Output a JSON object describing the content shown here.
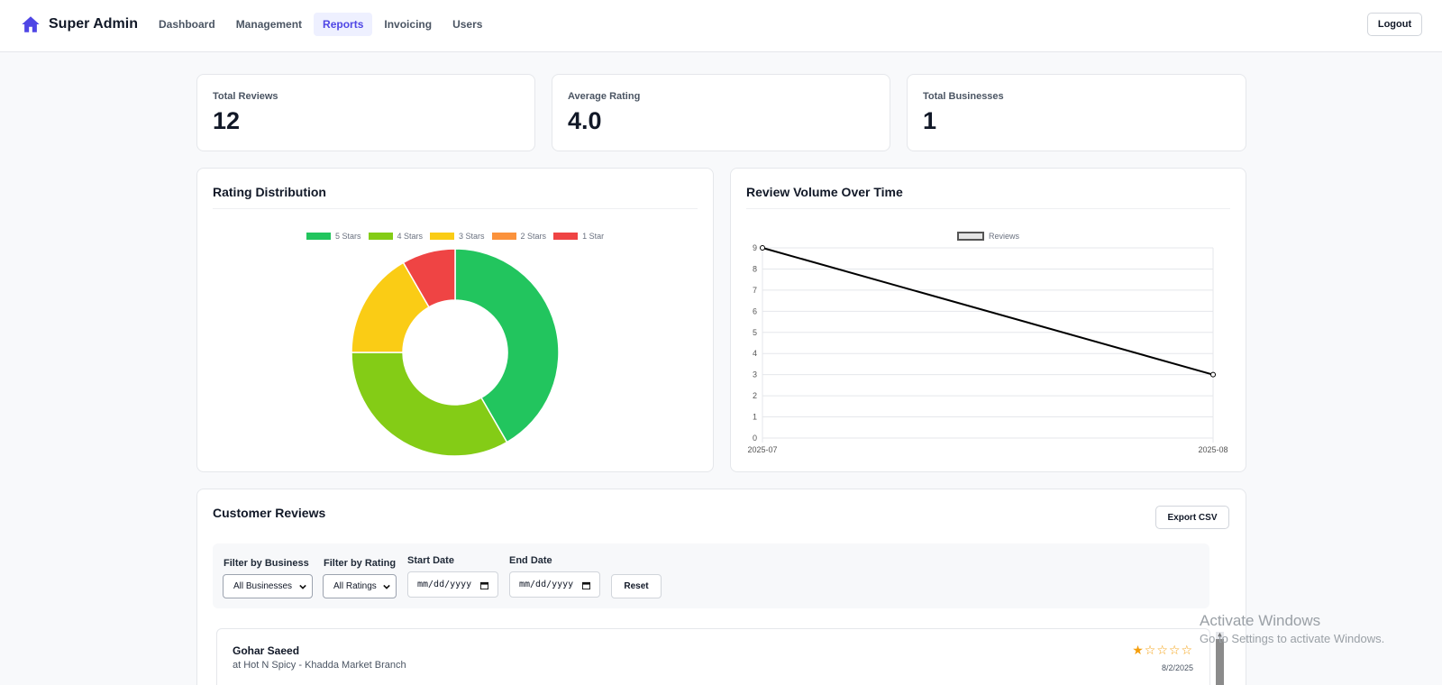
{
  "brand": {
    "name": "Super Admin",
    "icon": "home-icon",
    "accent": "#4f46e5"
  },
  "nav": {
    "items": [
      "Dashboard",
      "Management",
      "Reports",
      "Invoicing",
      "Users"
    ],
    "active": "Reports",
    "logout_label": "Logout"
  },
  "stats": [
    {
      "label": "Total Reviews",
      "value": "12"
    },
    {
      "label": "Average Rating",
      "value": "4.0"
    },
    {
      "label": "Total Businesses",
      "value": "1"
    }
  ],
  "rating_distribution": {
    "title": "Rating Distribution",
    "legend": [
      "5 Stars",
      "4 Stars",
      "3 Stars",
      "2 Stars",
      "1 Star"
    ]
  },
  "review_volume": {
    "title": "Review Volume Over Time",
    "legend": [
      "Reviews"
    ]
  },
  "chart_data": [
    {
      "type": "pie",
      "variant": "doughnut",
      "title": "Rating Distribution",
      "categories": [
        "5 Stars",
        "4 Stars",
        "3 Stars",
        "2 Stars",
        "1 Star"
      ],
      "values": [
        5,
        4,
        2,
        0,
        1
      ],
      "colors": [
        "#22c55e",
        "#84cc16",
        "#facc15",
        "#fb923c",
        "#ef4444"
      ],
      "legend": "top"
    },
    {
      "type": "line",
      "title": "Review Volume Over Time",
      "x": [
        "2025-07",
        "2025-08"
      ],
      "series": [
        {
          "name": "Reviews",
          "values": [
            9,
            3
          ],
          "color": "#000000"
        }
      ],
      "ylim": [
        0,
        9
      ],
      "yticks": [
        0,
        1,
        2,
        3,
        4,
        5,
        6,
        7,
        8,
        9
      ],
      "grid": true,
      "legend": "top"
    }
  ],
  "reviews": {
    "title": "Customer Reviews",
    "export_label": "Export CSV",
    "filters": {
      "business_label": "Filter by Business",
      "business_value": "All Businesses",
      "rating_label": "Filter by Rating",
      "rating_value": "All Ratings",
      "start_label": "Start Date",
      "start_placeholder": "mm/dd/yyyy",
      "end_label": "End Date",
      "end_placeholder": "mm/dd/yyyy",
      "reset_label": "Reset"
    },
    "items": [
      {
        "name": "Gohar Saeed",
        "business": "at Hot N Spicy - Khadda Market Branch",
        "rating": 1,
        "stars": "★☆☆☆☆",
        "date": "8/2/2025"
      }
    ]
  },
  "watermark": {
    "title": "Activate Windows",
    "subtitle": "Go to Settings to activate Windows."
  }
}
